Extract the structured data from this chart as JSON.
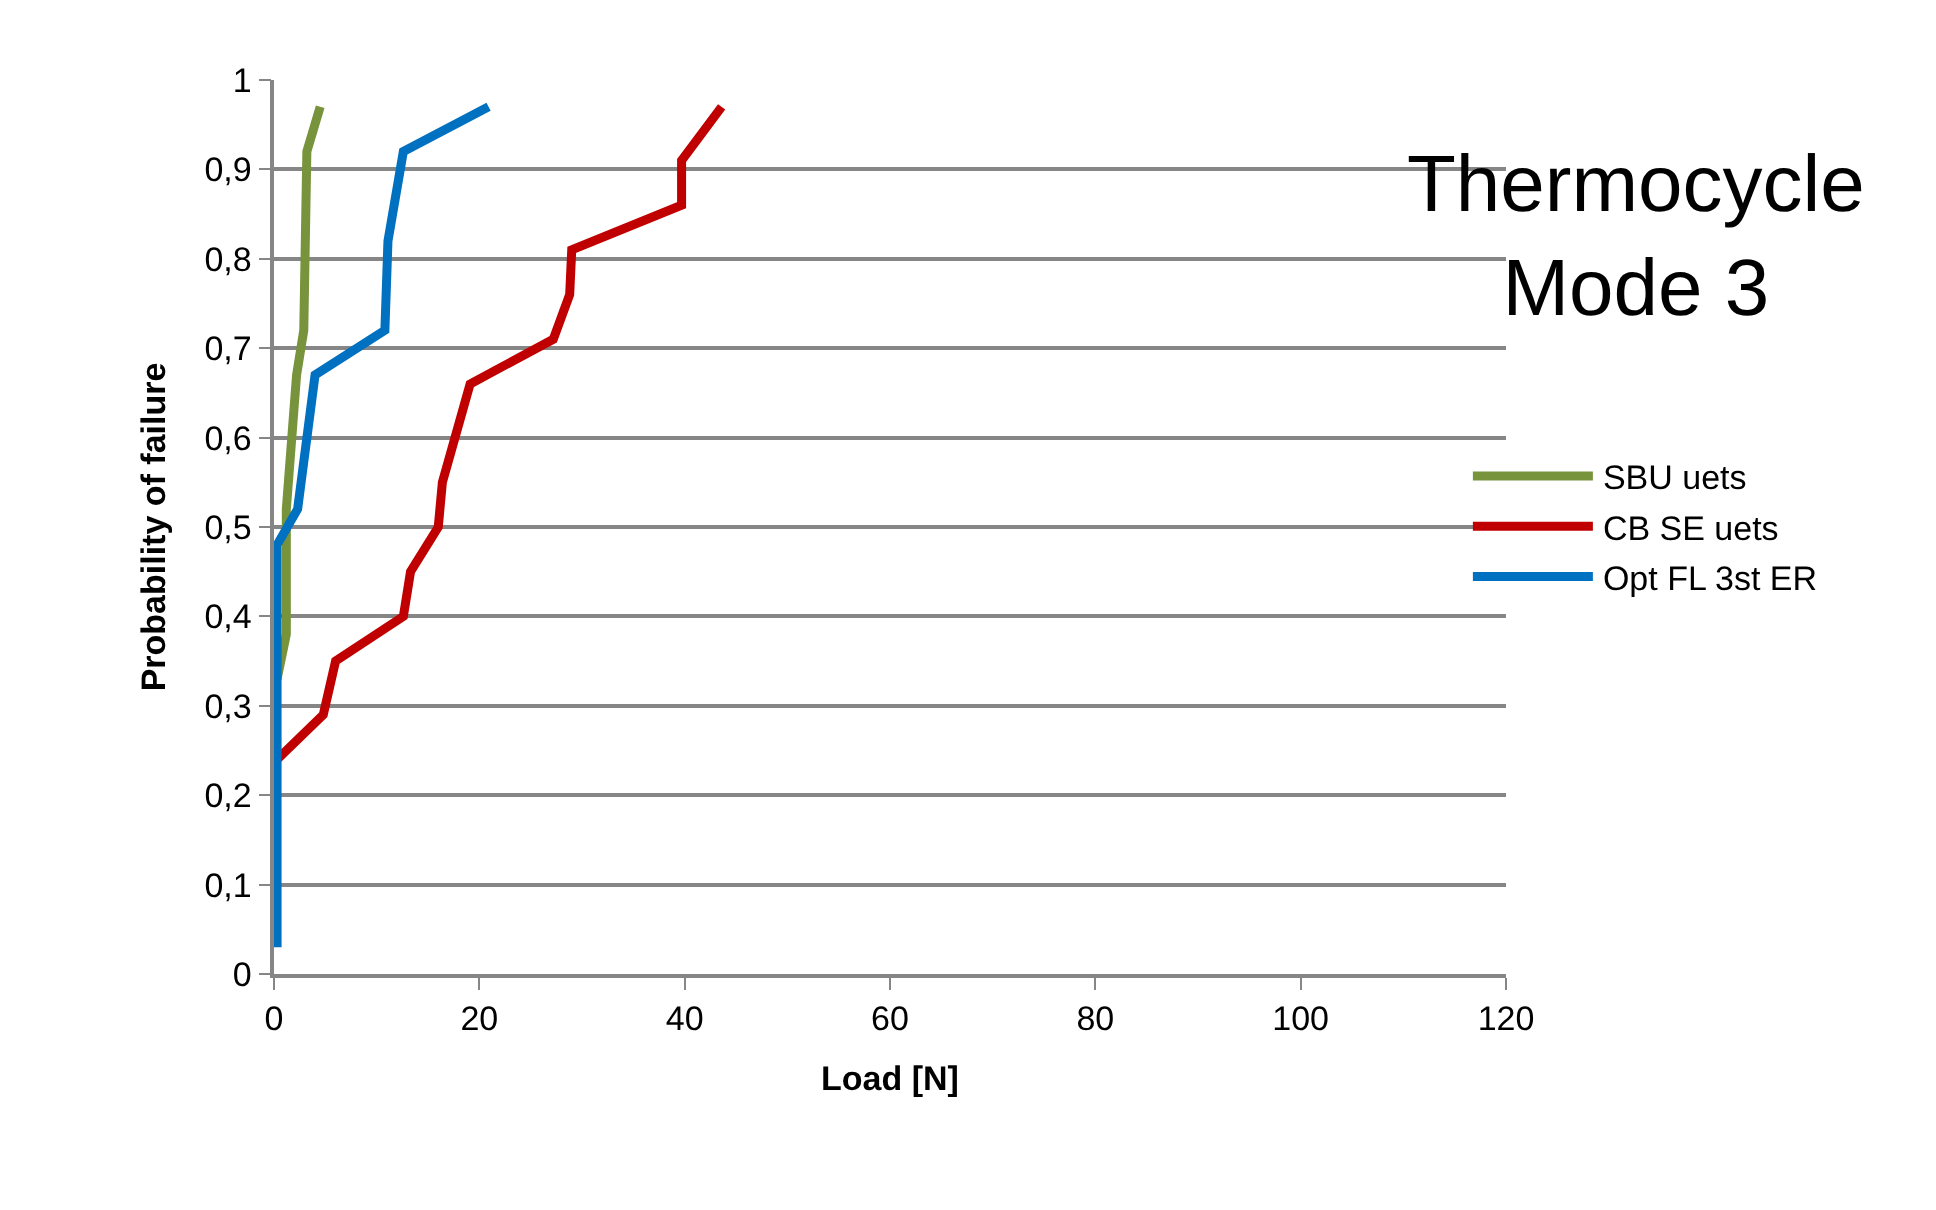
{
  "chart_data": {
    "type": "line",
    "title": "Thermocycle Mode 3",
    "xlabel": "Load [N]",
    "ylabel": "Probability of failure",
    "xlim": [
      0,
      120
    ],
    "xticks": [
      0,
      20,
      40,
      60,
      80,
      100,
      120
    ],
    "ylim": [
      0,
      1
    ],
    "yticks": [
      0,
      {
        "value": 0.1,
        "label": "0,1"
      },
      {
        "value": 0.2,
        "label": "0,2"
      },
      {
        "value": 0.3,
        "label": "0,3"
      },
      {
        "value": 0.4,
        "label": "0,4"
      },
      {
        "value": 0.5,
        "label": "0,5"
      },
      {
        "value": 0.6,
        "label": "0,6"
      },
      {
        "value": 0.7,
        "label": "0,7"
      },
      {
        "value": 0.8,
        "label": "0,8"
      },
      {
        "value": 0.9,
        "label": "0,9"
      },
      1
    ],
    "grid": "y",
    "legend": "right",
    "marker": "none",
    "line_style": "solid",
    "series": [
      {
        "name": "SBU uets",
        "color": "#77933c",
        "x": [
          0.3,
          1.2,
          1.2,
          2.2,
          2.9,
          3.2,
          4.5
        ],
        "values": [
          0.33,
          0.38,
          0.52,
          0.67,
          0.72,
          0.92,
          0.97
        ]
      },
      {
        "name": "CB SE uets",
        "color": "#c00000",
        "x": [
          0.3,
          4.8,
          6.0,
          12.6,
          13.3,
          16.0,
          16.4,
          19.1,
          27.2,
          28.8,
          29.0,
          39.7,
          39.7,
          43.6
        ],
        "values": [
          0.24,
          0.29,
          0.35,
          0.4,
          0.45,
          0.5,
          0.55,
          0.66,
          0.71,
          0.76,
          0.81,
          0.86,
          0.91,
          0.97
        ]
      },
      {
        "name": "Opt FL 3st ER",
        "color": "#0070c0",
        "x": [
          0.3,
          0.3,
          2.3,
          4.0,
          10.8,
          11.1,
          12.6,
          20.9
        ],
        "values": [
          0.03,
          0.48,
          0.52,
          0.67,
          0.72,
          0.82,
          0.92,
          0.97
        ]
      }
    ]
  }
}
